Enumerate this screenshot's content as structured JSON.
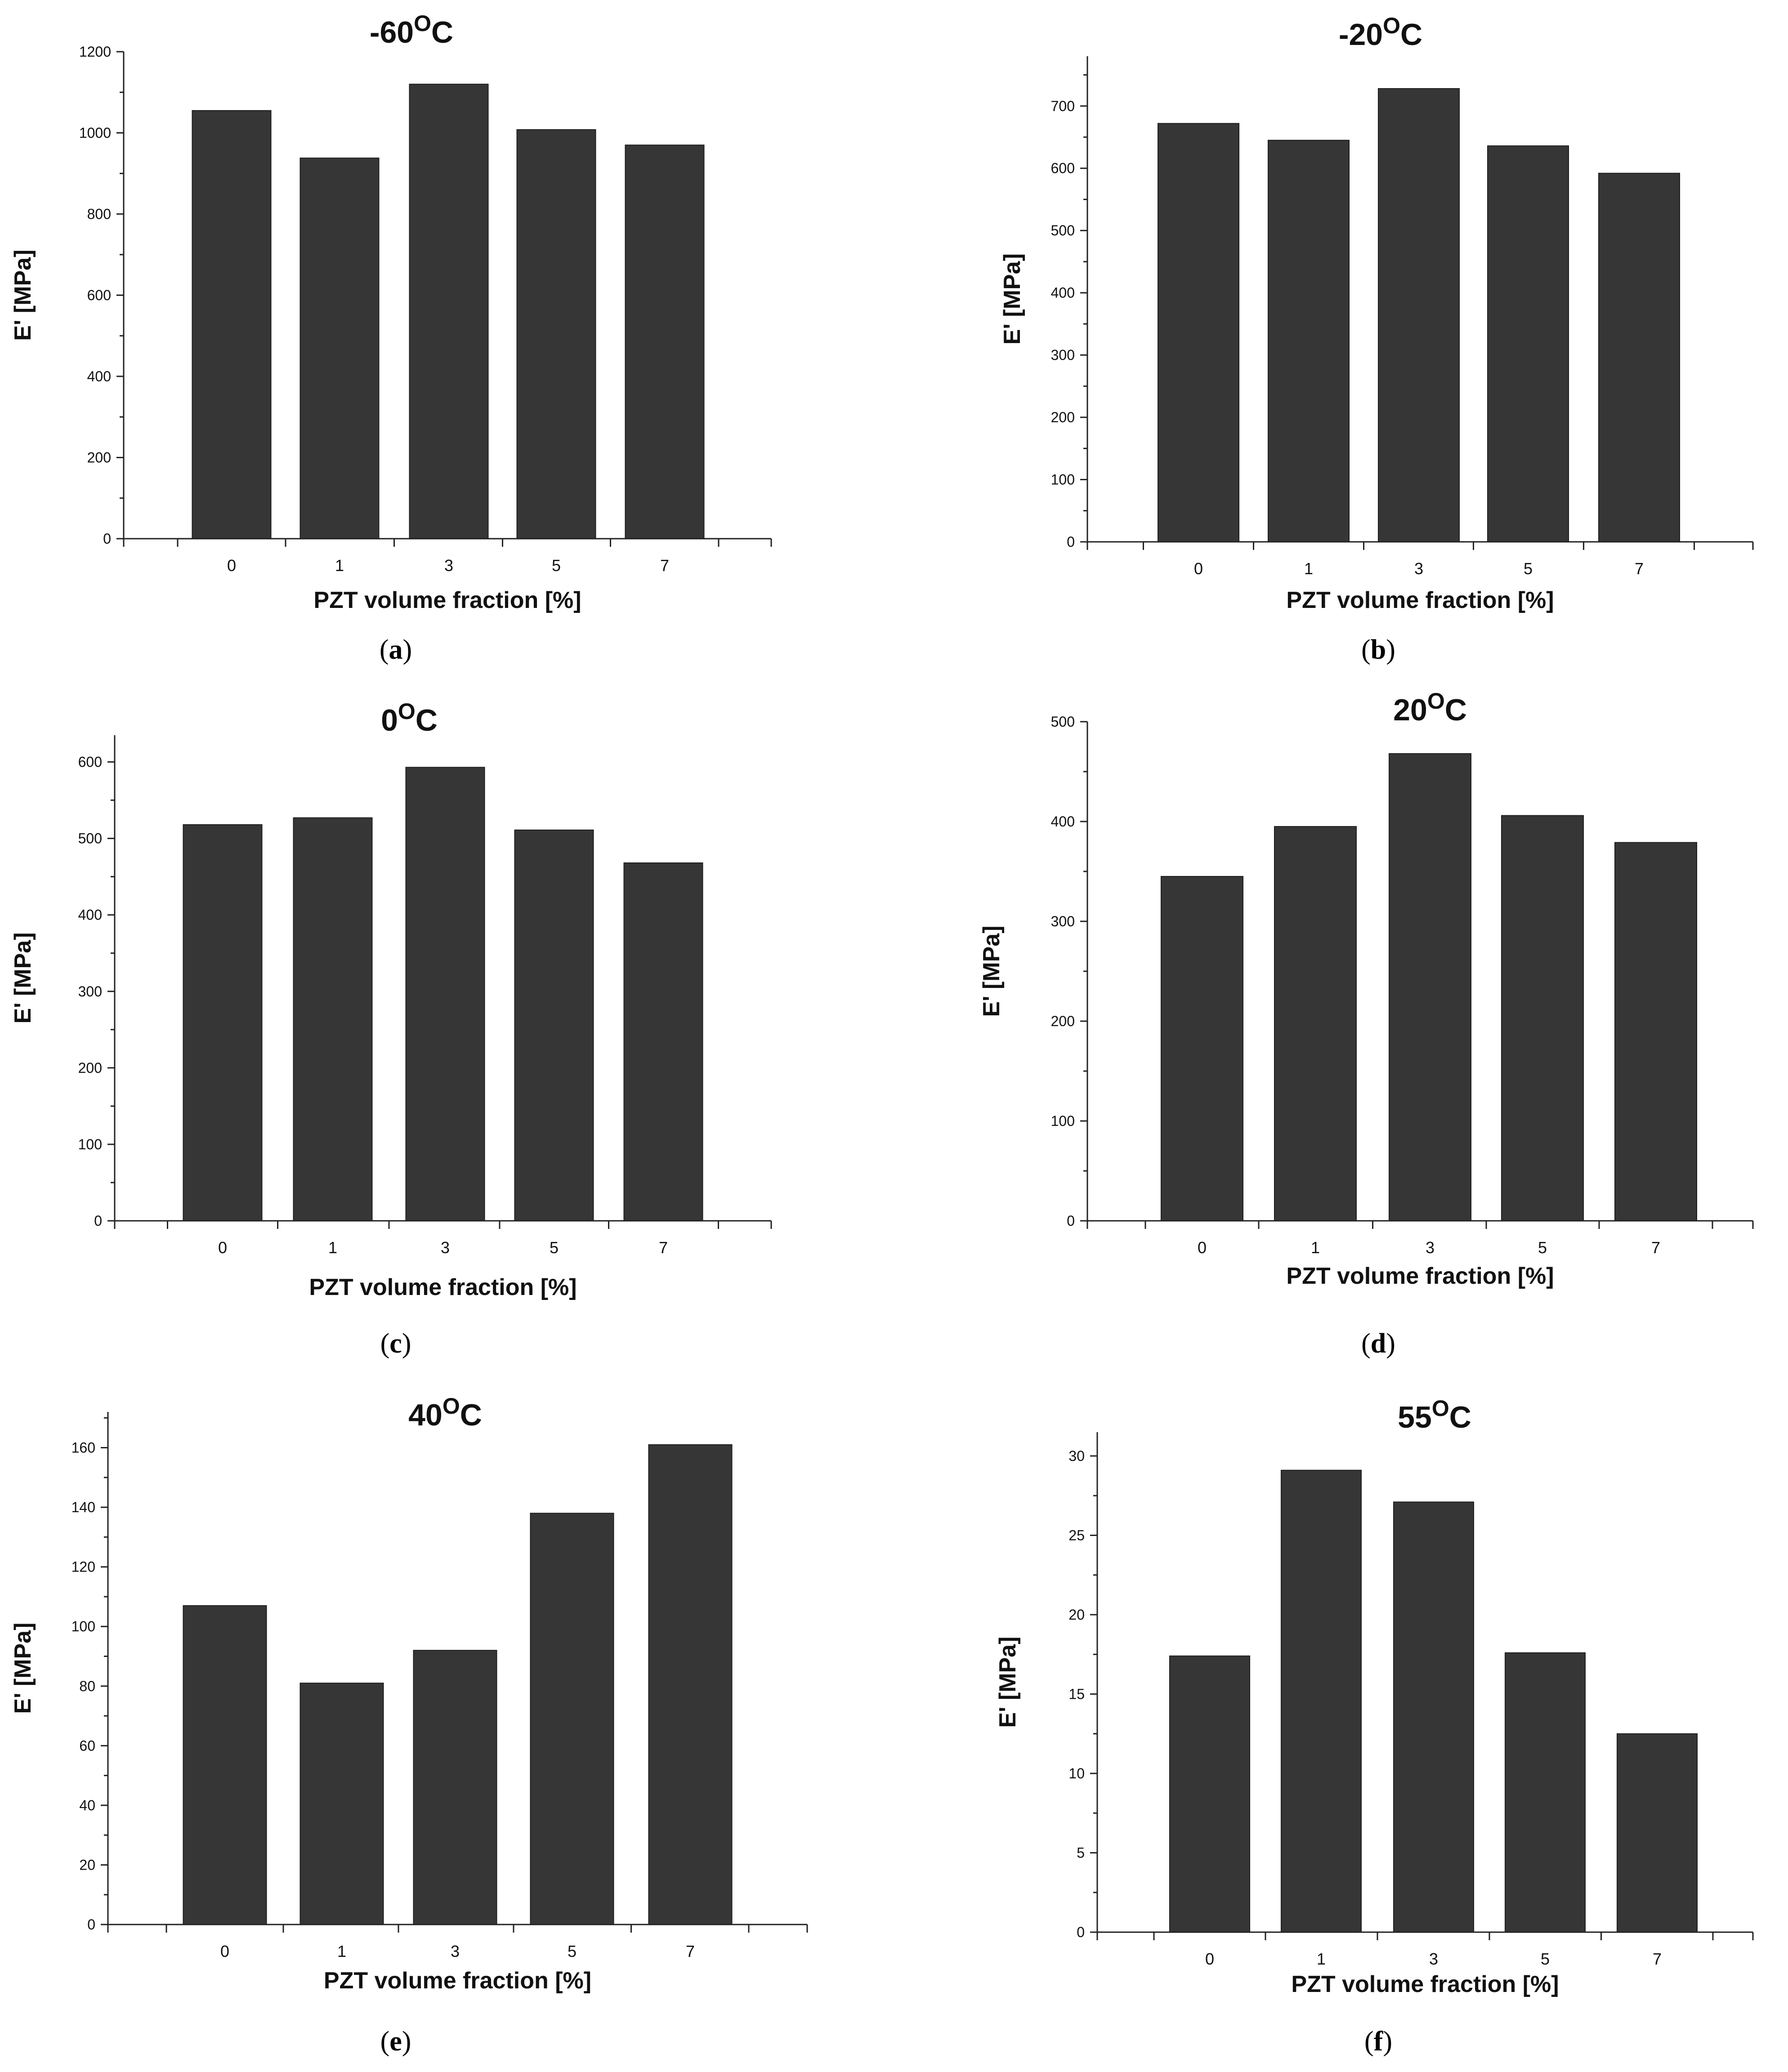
{
  "figure": {
    "panels_count": 6
  },
  "chart_data": [
    {
      "type": "bar",
      "panel_letter": "a",
      "title": "-60",
      "title_sup": "O",
      "title_unit": "C",
      "xlabel": "PZT volume fraction [%]",
      "ylabel": "E' [MPa]",
      "categories": [
        "0",
        "1",
        "3",
        "5",
        "7"
      ],
      "values": [
        1055,
        938,
        1120,
        1008,
        970
      ],
      "ylim": [
        0,
        1200
      ],
      "yticks": [
        0,
        200,
        400,
        600,
        800,
        1000,
        1200
      ],
      "grid": false,
      "caption_open": "(",
      "caption_letter": "a",
      "caption_close": ")"
    },
    {
      "type": "bar",
      "panel_letter": "b",
      "title": "-20",
      "title_sup": "O",
      "title_unit": "C",
      "xlabel": "PZT volume fraction [%]",
      "ylabel": "E' [MPa]",
      "categories": [
        "0",
        "1",
        "3",
        "5",
        "7"
      ],
      "values": [
        672,
        645,
        728,
        636,
        592
      ],
      "ylim": [
        0,
        780
      ],
      "yticks": [
        0,
        100,
        200,
        300,
        400,
        500,
        600,
        700
      ],
      "grid": false,
      "caption_open": "(",
      "caption_letter": "b",
      "caption_close": ")"
    },
    {
      "type": "bar",
      "panel_letter": "c",
      "title": "0",
      "title_sup": "O",
      "title_unit": "C",
      "xlabel": "PZT volume fraction [%]",
      "ylabel": "E' [MPa]",
      "categories": [
        "0",
        "1",
        "3",
        "5",
        "7"
      ],
      "values": [
        518,
        527,
        593,
        511,
        468
      ],
      "ylim": [
        0,
        635
      ],
      "yticks": [
        0,
        100,
        200,
        300,
        400,
        500,
        600
      ],
      "grid": false,
      "caption_open": "(",
      "caption_letter": "c",
      "caption_close": ")"
    },
    {
      "type": "bar",
      "panel_letter": "d",
      "title": "20",
      "title_sup": "O",
      "title_unit": "C",
      "xlabel": "PZT volume fraction [%]",
      "ylabel": "E' [MPa]",
      "categories": [
        "0",
        "1",
        "3",
        "5",
        "7"
      ],
      "values": [
        345,
        395,
        468,
        406,
        379
      ],
      "ylim": [
        0,
        500
      ],
      "yticks": [
        0,
        100,
        200,
        300,
        400,
        500
      ],
      "grid": false,
      "caption_open": "(",
      "caption_letter": "d",
      "caption_close": ")"
    },
    {
      "type": "bar",
      "panel_letter": "e",
      "title": "40",
      "title_sup": "O",
      "title_unit": "C",
      "xlabel": "PZT volume fraction [%]",
      "ylabel": "E' [MPa]",
      "categories": [
        "0",
        "1",
        "3",
        "5",
        "7"
      ],
      "values": [
        107,
        81,
        92,
        138,
        161
      ],
      "ylim": [
        0,
        172
      ],
      "yticks": [
        0,
        20,
        40,
        60,
        80,
        100,
        120,
        140,
        160
      ],
      "grid": false,
      "caption_open": "(",
      "caption_letter": "e",
      "caption_close": ")"
    },
    {
      "type": "bar",
      "panel_letter": "f",
      "title": "55",
      "title_sup": "O",
      "title_unit": "C",
      "xlabel": "PZT volume fraction [%]",
      "ylabel": "E' [MPa]",
      "categories": [
        "0",
        "1",
        "3",
        "5",
        "7"
      ],
      "values": [
        17.4,
        29.1,
        27.1,
        17.6,
        12.5
      ],
      "ylim": [
        0,
        31.5
      ],
      "yticks": [
        0,
        5,
        10,
        15,
        20,
        25,
        30
      ],
      "grid": false,
      "caption_open": "(",
      "caption_letter": "f",
      "caption_close": ")"
    }
  ]
}
